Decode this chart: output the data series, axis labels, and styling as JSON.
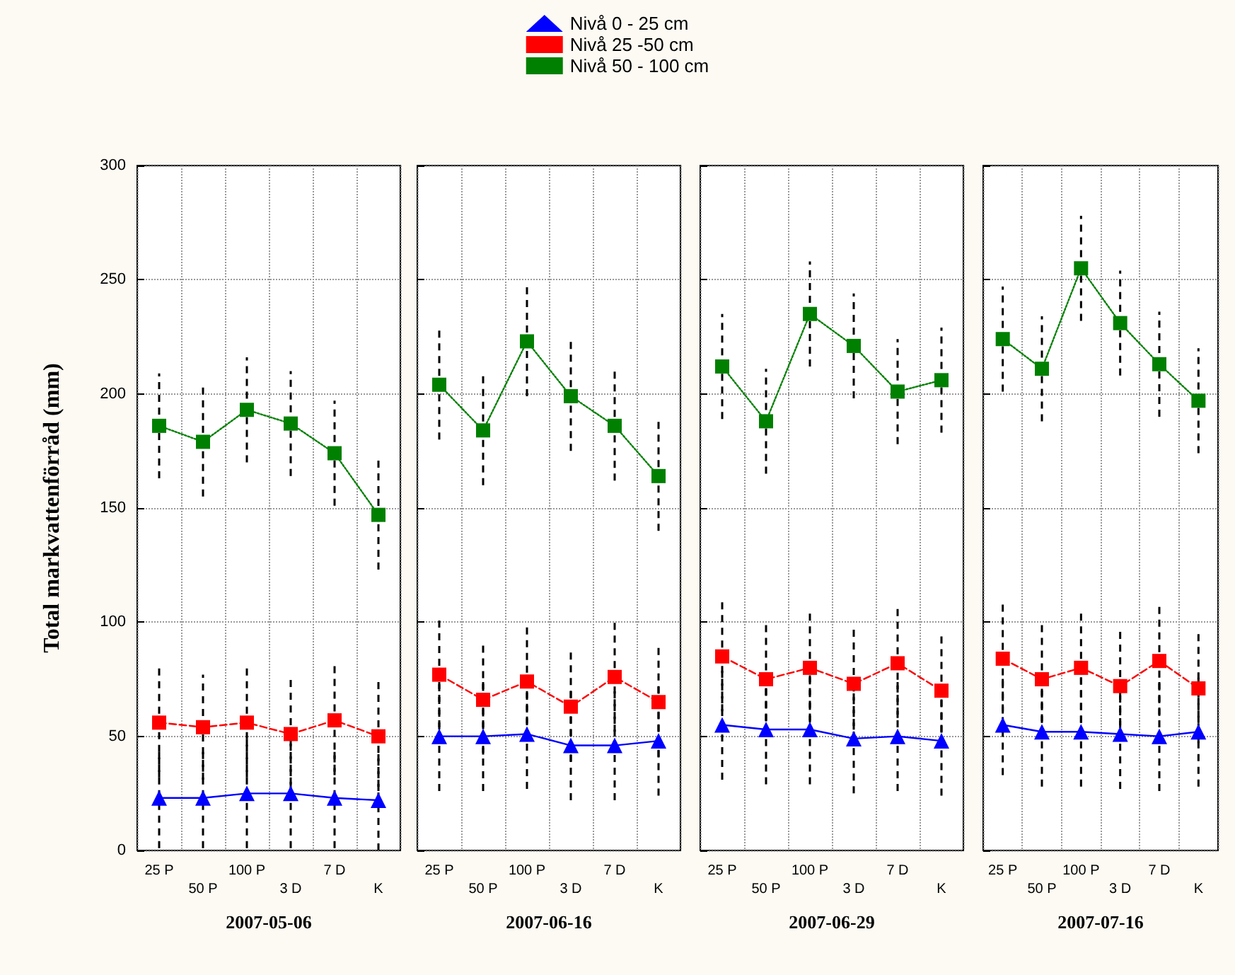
{
  "chart_data": [
    {
      "type": "line",
      "xlabel": "2007-05-06",
      "ylabel": "Total markvattenförråd (mm)",
      "categories": [
        "25 P",
        "50 P",
        "100 P",
        "3 D",
        "7 D",
        "K"
      ],
      "ylim": [
        0,
        300
      ],
      "yticks": [
        0,
        50,
        100,
        150,
        200,
        250,
        300
      ],
      "grid": true,
      "legend": "top",
      "series": [
        {
          "name": "Nivå 0 - 25 cm",
          "color": "#0000ff",
          "marker": "triangle",
          "line_style": "solid",
          "values": [
            23,
            23,
            25,
            25,
            23,
            22
          ],
          "errors": [
            22,
            22,
            24,
            24,
            22,
            22
          ]
        },
        {
          "name": "Nivå 25 -50 cm",
          "color": "#ff0000",
          "marker": "square",
          "line_style": "dashed",
          "values": [
            56,
            54,
            56,
            51,
            57,
            50
          ],
          "errors": [
            24,
            23,
            24,
            24,
            24,
            24
          ]
        },
        {
          "name": "Nivå 50 - 100 cm",
          "color": "#008000",
          "marker": "square",
          "line_style": "dotted",
          "values": [
            186,
            179,
            193,
            187,
            174,
            147
          ],
          "errors": [
            23,
            24,
            23,
            23,
            23,
            24
          ]
        }
      ]
    },
    {
      "type": "line",
      "xlabel": "2007-06-16",
      "categories": [
        "25 P",
        "50 P",
        "100 P",
        "3 D",
        "7 D",
        "K"
      ],
      "ylim": [
        0,
        300
      ],
      "yticks": [
        0,
        50,
        100,
        150,
        200,
        250,
        300
      ],
      "grid": true,
      "tick_labels": "x",
      "series": [
        {
          "color": "#0000ff",
          "marker": "triangle",
          "line_style": "solid",
          "values": [
            50,
            50,
            51,
            46,
            46,
            48
          ],
          "errors": [
            24,
            24,
            24,
            24,
            24,
            24
          ]
        },
        {
          "color": "#ff0000",
          "marker": "square",
          "line_style": "dashed",
          "values": [
            77,
            66,
            74,
            63,
            76,
            65
          ],
          "errors": [
            24,
            24,
            24,
            24,
            24,
            24
          ]
        },
        {
          "color": "#008000",
          "marker": "square",
          "line_style": "dotted",
          "values": [
            204,
            184,
            223,
            199,
            186,
            164
          ],
          "errors": [
            24,
            24,
            24,
            24,
            24,
            24
          ]
        }
      ]
    },
    {
      "type": "line",
      "xlabel": "2007-06-29",
      "categories": [
        "25 P",
        "50 P",
        "100 P",
        "3 D",
        "7 D",
        "K"
      ],
      "ylim": [
        0,
        300
      ],
      "yticks": [
        0,
        50,
        100,
        150,
        200,
        250,
        300
      ],
      "grid": true,
      "tick_labels": "x",
      "series": [
        {
          "color": "#0000ff",
          "marker": "triangle",
          "line_style": "solid",
          "values": [
            55,
            53,
            53,
            49,
            50,
            48
          ],
          "errors": [
            24,
            24,
            24,
            24,
            24,
            24
          ]
        },
        {
          "color": "#ff0000",
          "marker": "square",
          "line_style": "dashed",
          "values": [
            85,
            75,
            80,
            73,
            82,
            70
          ],
          "errors": [
            24,
            24,
            24,
            24,
            24,
            24
          ]
        },
        {
          "color": "#008000",
          "marker": "square",
          "line_style": "dotted",
          "values": [
            212,
            188,
            235,
            221,
            201,
            206
          ],
          "errors": [
            23,
            23,
            23,
            23,
            23,
            23
          ]
        }
      ]
    },
    {
      "type": "line",
      "xlabel": "2007-07-16",
      "categories": [
        "25 P",
        "50 P",
        "100 P",
        "3 D",
        "7 D",
        "K"
      ],
      "ylim": [
        0,
        300
      ],
      "yticks": [
        0,
        50,
        100,
        150,
        200,
        250,
        300
      ],
      "grid": true,
      "tick_labels": "x",
      "series": [
        {
          "color": "#0000ff",
          "marker": "triangle",
          "line_style": "solid",
          "values": [
            55,
            52,
            52,
            51,
            50,
            52
          ],
          "errors": [
            22,
            24,
            24,
            24,
            24,
            24
          ]
        },
        {
          "color": "#ff0000",
          "marker": "square",
          "line_style": "dashed",
          "values": [
            84,
            75,
            80,
            72,
            83,
            71
          ],
          "errors": [
            24,
            24,
            24,
            24,
            24,
            24
          ]
        },
        {
          "color": "#008000",
          "marker": "square",
          "line_style": "dotted",
          "values": [
            224,
            211,
            255,
            231,
            213,
            197
          ],
          "errors": [
            23,
            23,
            23,
            23,
            23,
            23
          ]
        }
      ]
    }
  ]
}
